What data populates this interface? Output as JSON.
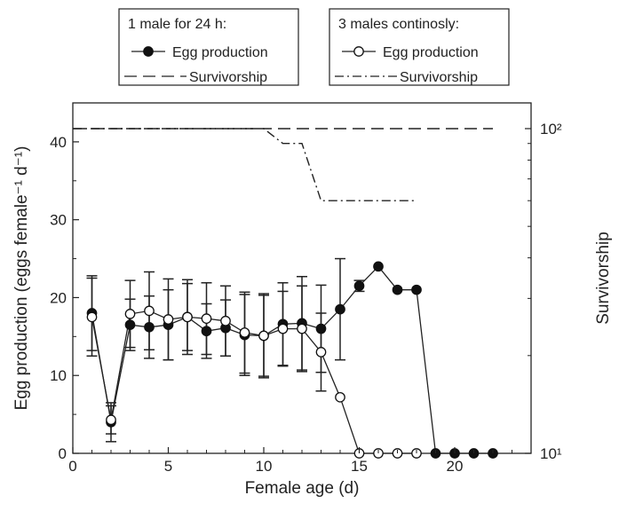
{
  "chart_data": {
    "type": "line",
    "xlabel": "Female age (d)",
    "ylabel_left": "Egg production (eggs female⁻¹ d⁻¹)",
    "ylabel_right": "Survivorship",
    "xlim": [
      0,
      24
    ],
    "ylim_left": [
      0,
      45
    ],
    "ylim_right": [
      10,
      120
    ],
    "yscale_right": "log",
    "x_ticks": [
      0,
      5,
      10,
      15,
      20
    ],
    "y_ticks_left": [
      0,
      10,
      20,
      30,
      40
    ],
    "y_ticks_right": [
      "10¹",
      "10²"
    ],
    "y_ticks_right_values": [
      10,
      100
    ],
    "legend": [
      {
        "title": "1 male for 24 h:",
        "entries": [
          {
            "label": "Egg production",
            "style": "filled-circle-line"
          },
          {
            "label": "Survivorship",
            "style": "dashed"
          }
        ]
      },
      {
        "title": "3 males continosly:",
        "entries": [
          {
            "label": "Egg production",
            "style": "open-circle-line"
          },
          {
            "label": "Survivorship",
            "style": "dash-dot"
          }
        ]
      }
    ],
    "series": [
      {
        "group": "1 male for 24 h",
        "kind": "egg",
        "marker": "filled",
        "x": [
          1,
          2,
          3,
          4,
          5,
          6,
          7,
          8,
          9,
          10,
          11,
          12,
          13,
          14,
          15,
          16,
          17,
          18,
          19,
          20,
          21,
          22
        ],
        "y": [
          18,
          4,
          16.5,
          16.2,
          16.5,
          17.5,
          15.7,
          16.1,
          15.2,
          15.1,
          16.6,
          16.7,
          16.0,
          18.5,
          21.5,
          24.0,
          21.0,
          21.0,
          0,
          0,
          0,
          0
        ],
        "err": [
          4.8,
          2.5,
          3.3,
          4.0,
          4.5,
          4.3,
          3.5,
          3.6,
          5.2,
          5.4,
          5.3,
          6.0,
          5.6,
          6.5,
          0.7,
          null,
          null,
          null,
          null,
          null,
          null,
          null
        ]
      },
      {
        "group": "3 males continosly",
        "kind": "egg",
        "marker": "open",
        "x": [
          1,
          2,
          3,
          4,
          5,
          6,
          7,
          8,
          9,
          10,
          11,
          12,
          13,
          14,
          15,
          16,
          17,
          18
        ],
        "y": [
          17.5,
          4.3,
          17.9,
          18.3,
          17.2,
          17.5,
          17.3,
          17.0,
          15.5,
          15.1,
          16.0,
          16.0,
          13.0,
          7.2,
          0,
          0,
          0,
          0
        ],
        "err": [
          5.0,
          1.8,
          4.3,
          5.0,
          5.2,
          4.8,
          4.6,
          4.5,
          5.2,
          5.2,
          4.8,
          5.5,
          5.0,
          null,
          null,
          null,
          null,
          null
        ]
      },
      {
        "group": "1 male for 24 h",
        "kind": "survivorship",
        "style": "dashed",
        "x": [
          0,
          22
        ],
        "y": [
          100,
          100
        ]
      },
      {
        "group": "3 males continosly",
        "kind": "survivorship",
        "style": "dash-dot",
        "x": [
          0,
          10,
          11,
          12,
          13,
          18
        ],
        "y": [
          100,
          100,
          90,
          90,
          60,
          60
        ]
      }
    ]
  }
}
